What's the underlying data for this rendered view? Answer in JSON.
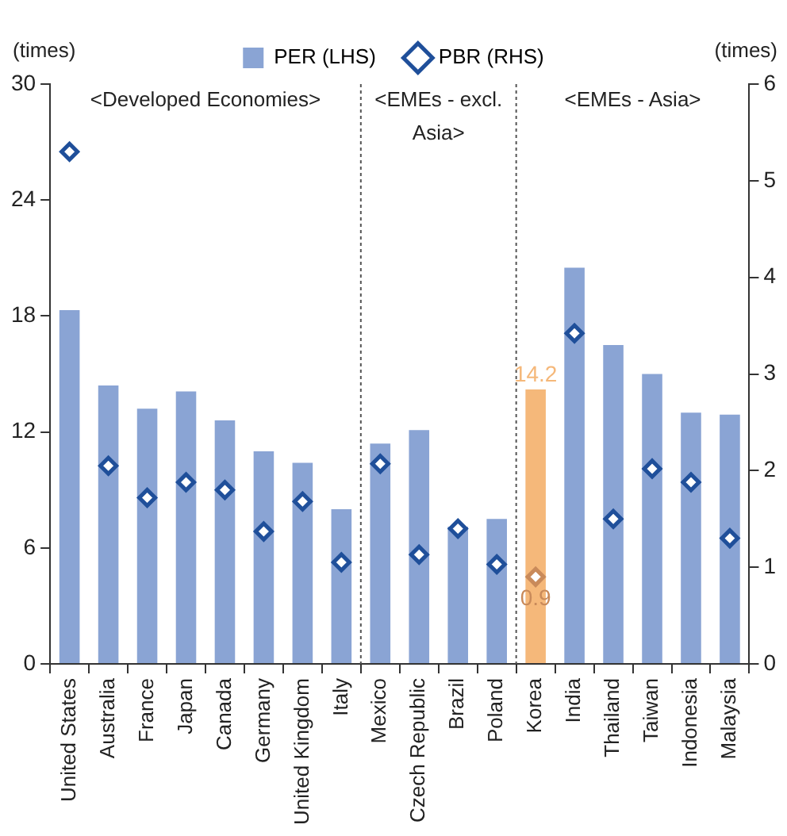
{
  "chart_data": {
    "type": "bar",
    "categories": [
      "United States",
      "Australia",
      "France",
      "Japan",
      "Canada",
      "Germany",
      "United Kingdom",
      "Italy",
      "Mexico",
      "Czech Republic",
      "Brazil",
      "Poland",
      "Korea",
      "India",
      "Thailand",
      "Taiwan",
      "Indonesia",
      "Malaysia"
    ],
    "series": [
      {
        "name": "PER (LHS)",
        "color": "#8aa4d4",
        "colors": [
          "#8aa4d4",
          "#8aa4d4",
          "#8aa4d4",
          "#8aa4d4",
          "#8aa4d4",
          "#8aa4d4",
          "#8aa4d4",
          "#8aa4d4",
          "#8aa4d4",
          "#8aa4d4",
          "#8aa4d4",
          "#8aa4d4",
          "#f5b87a",
          "#8aa4d4",
          "#8aa4d4",
          "#8aa4d4",
          "#8aa4d4",
          "#8aa4d4"
        ],
        "values": [
          18.3,
          14.4,
          13.2,
          14.1,
          12.6,
          11.0,
          10.4,
          8.0,
          11.4,
          12.1,
          7.1,
          7.5,
          14.2,
          20.5,
          16.5,
          15.0,
          13.0,
          12.9
        ],
        "value_labels": [
          null,
          null,
          null,
          null,
          null,
          null,
          null,
          null,
          null,
          null,
          null,
          null,
          "14.2",
          null,
          null,
          null,
          null,
          null
        ]
      },
      {
        "name": "PBR (RHS)",
        "type": "scatter",
        "axis": "y2",
        "marker": "diamond",
        "color": "#1f4f9a",
        "colors": [
          "#1f4f9a",
          "#1f4f9a",
          "#1f4f9a",
          "#1f4f9a",
          "#1f4f9a",
          "#1f4f9a",
          "#1f4f9a",
          "#1f4f9a",
          "#1f4f9a",
          "#1f4f9a",
          "#1f4f9a",
          "#1f4f9a",
          "#c98a5a",
          "#1f4f9a",
          "#1f4f9a",
          "#1f4f9a",
          "#1f4f9a",
          "#1f4f9a"
        ],
        "values": [
          5.3,
          2.05,
          1.72,
          1.88,
          1.8,
          1.37,
          1.68,
          1.05,
          2.07,
          1.13,
          1.4,
          1.03,
          0.9,
          3.42,
          1.5,
          2.02,
          1.88,
          1.3
        ],
        "value_labels": [
          null,
          null,
          null,
          null,
          null,
          null,
          null,
          null,
          null,
          null,
          null,
          null,
          "0.9",
          null,
          null,
          null,
          null,
          null
        ]
      }
    ],
    "ylabel": "(times)",
    "y2label": "(times)",
    "ylim": [
      0,
      30
    ],
    "yticks": [
      0,
      6,
      12,
      18,
      24,
      30
    ],
    "y2lim": [
      0,
      6
    ],
    "y2ticks": [
      0,
      1,
      2,
      3,
      4,
      5,
      6
    ],
    "annotations": [
      "<Developed Economies>",
      "<EMEs - excl.\nAsia>",
      "<EMEs - Asia>"
    ],
    "legend": "top",
    "grid": false
  }
}
